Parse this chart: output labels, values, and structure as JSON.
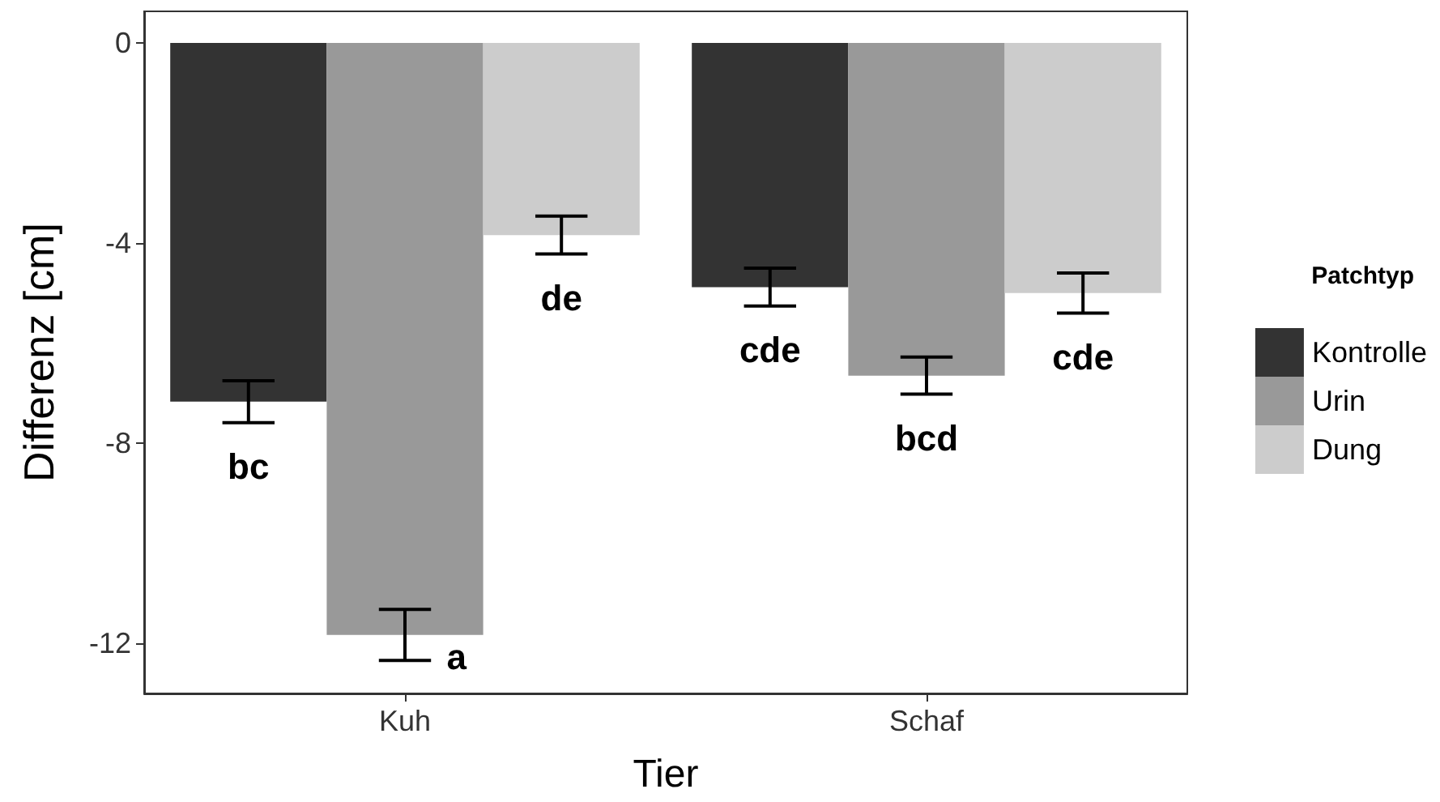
{
  "chart_data": {
    "type": "bar",
    "xlabel": "Tier",
    "ylabel": "Differenz [cm]",
    "legend_title": "Patchtyp",
    "categories": [
      "Kuh",
      "Schaf"
    ],
    "series": [
      {
        "name": "Kontrolle",
        "color": "#333333",
        "values": [
          -7.17,
          -4.88
        ],
        "errors": [
          0.42,
          0.38
        ]
      },
      {
        "name": "Urin",
        "color": "#999999",
        "values": [
          -11.83,
          -6.65
        ],
        "errors": [
          0.51,
          0.37
        ]
      },
      {
        "name": "Dung",
        "color": "#cccccc",
        "values": [
          -3.84,
          -5.0
        ],
        "errors": [
          0.38,
          0.4
        ]
      }
    ],
    "annotations": [
      "bc",
      "a",
      "de",
      "cde",
      "bcd",
      "cde"
    ],
    "ylim": [
      -13,
      0.63
    ],
    "yticks": [
      0,
      -4,
      -8,
      -12
    ],
    "grid": false,
    "legend": "right"
  }
}
